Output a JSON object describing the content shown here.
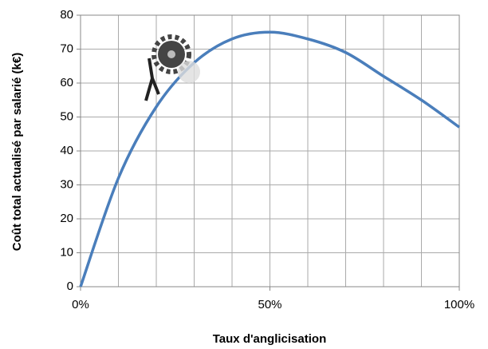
{
  "chart_data": {
    "type": "line",
    "x_label": "Taux d'anglicisation",
    "y_label": "Coût total actualisé  par salarié  (k€)",
    "x": [
      0,
      10,
      20,
      30,
      40,
      50,
      60,
      70,
      80,
      90,
      100
    ],
    "series": [
      {
        "name": "Coût total",
        "color": "#4a7ebb",
        "values": [
          0,
          32,
          53,
          66,
          73,
          75,
          73,
          69,
          62,
          55,
          47
        ]
      }
    ],
    "xlim": [
      0,
      100
    ],
    "xticks": [
      {
        "value": 0,
        "label": "0%"
      },
      {
        "value": 50,
        "label": "50%"
      },
      {
        "value": 100,
        "label": "100%"
      }
    ],
    "xgrid": [
      0,
      10,
      20,
      30,
      40,
      50,
      60,
      70,
      80,
      90,
      100
    ],
    "ylim": [
      0,
      80
    ],
    "yticks": [
      0,
      10,
      20,
      30,
      40,
      50,
      60,
      70,
      80
    ],
    "grid": true
  }
}
